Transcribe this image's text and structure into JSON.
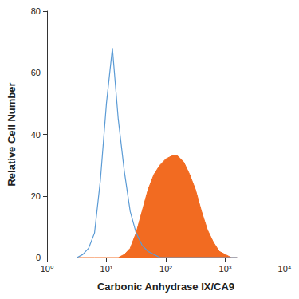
{
  "chart_data": {
    "type": "line",
    "x_label": "Carbonic Anhydrase IX/CA9",
    "y_label": "Relative Cell Number",
    "x": [
      3.2,
      4.0,
      5.0,
      6.3,
      7.9,
      10,
      12.6,
      15.8,
      20,
      25.1,
      31.6,
      39.8,
      50.1,
      63.1,
      79.4,
      100,
      126,
      158,
      200,
      251,
      316,
      398,
      501,
      631,
      794,
      1000,
      1259,
      1585
    ],
    "series": [
      {
        "type": "area",
        "color": "#f26b21",
        "values": [
          0,
          0,
          0,
          0,
          0,
          0,
          0,
          0,
          1,
          3,
          8,
          15,
          22,
          27,
          30,
          32,
          33,
          33,
          31,
          27,
          22,
          15,
          9,
          5,
          2,
          1,
          0,
          0
        ]
      },
      {
        "type": "line",
        "color": "#5b9bd5",
        "values": [
          0,
          1,
          3,
          8,
          25,
          50,
          68,
          45,
          28,
          15,
          8,
          4,
          2,
          1,
          0,
          0,
          0,
          0,
          0,
          0,
          0,
          0,
          0,
          0,
          0,
          0,
          0,
          0
        ]
      }
    ],
    "log": "x",
    "xlim": [
      1,
      10000
    ],
    "xticks": [
      {
        "value": 1,
        "label": "10⁰"
      },
      {
        "value": 10,
        "label": "10¹"
      },
      {
        "value": 100,
        "label": "10²"
      },
      {
        "value": 1000,
        "label": "10³"
      },
      {
        "value": 10000,
        "label": "10⁴"
      }
    ],
    "ylim": [
      0,
      80
    ],
    "yticks": [
      0,
      20,
      40,
      60,
      80
    ],
    "grid": false
  }
}
